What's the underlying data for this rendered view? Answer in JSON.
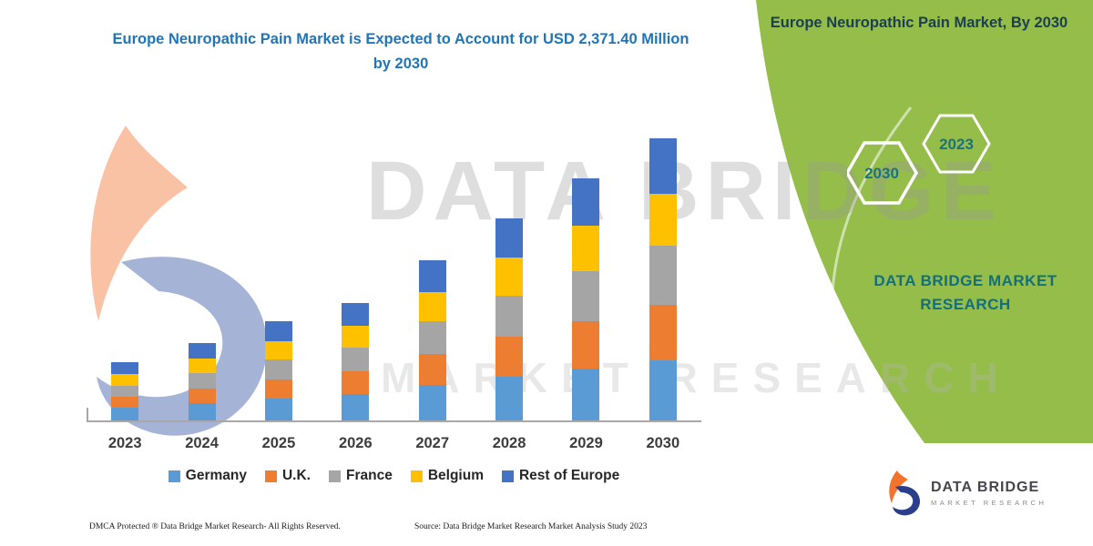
{
  "watermark": {
    "line1": "DATA BRIDGE",
    "line2": "MARKET RESEARCH"
  },
  "side_panel": {
    "title": "Europe Neuropathic Pain Market, By 2030",
    "hexagons": [
      "2030",
      "2023"
    ],
    "brand": "DATA BRIDGE MARKET RESEARCH"
  },
  "footer": {
    "dmca": "DMCA Protected ® Data Bridge Market Research-  All Rights Reserved.",
    "source": "Source: Data Bridge Market Research  Market Analysis Study 2023"
  },
  "logo": {
    "name": "DATA BRIDGE",
    "sub": "MARKET RESEARCH"
  },
  "colors": {
    "panel_green": "#94bd4a",
    "title_blue": "#1f75b5",
    "brand_teal": "#136f7b",
    "side_title_navy": "#1c3e52"
  },
  "chart_data": {
    "type": "bar",
    "stacked": true,
    "title": "Europe Neuropathic Pain Market is Expected to Account for USD 2,371.40 Million by 2030",
    "unit": "USD Million",
    "categories": [
      "2023",
      "2024",
      "2025",
      "2026",
      "2027",
      "2028",
      "2029",
      "2030"
    ],
    "series": [
      {
        "name": "Germany",
        "color": "#5b9bd5",
        "values": [
          107,
          146,
          184,
          223,
          299,
          368,
          437,
          507
        ]
      },
      {
        "name": "U.K.",
        "color": "#ed7d31",
        "values": [
          92,
          123,
          161,
          192,
          261,
          338,
          399,
          468
        ]
      },
      {
        "name": "France",
        "color": "#a5a5a5",
        "values": [
          92,
          130,
          169,
          199,
          276,
          345,
          422,
          491
        ]
      },
      {
        "name": "Belgium",
        "color": "#ffc000",
        "values": [
          100,
          123,
          153,
          184,
          246,
          315,
          376,
          437
        ]
      },
      {
        "name": "Rest of Europe",
        "color": "#4472c4",
        "values": [
          100,
          130,
          169,
          192,
          261,
          330,
          400,
          468.4
        ]
      }
    ],
    "totals_estimated": [
      491,
      652,
      836,
      990,
      1343,
      1696,
      2034,
      2371.4
    ],
    "ylim": [
      0,
      2371.4
    ],
    "grid": false,
    "legend_position": "bottom"
  }
}
